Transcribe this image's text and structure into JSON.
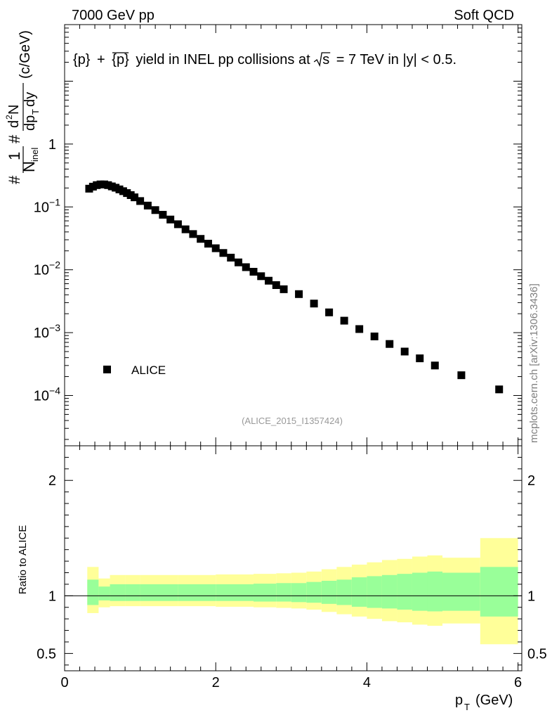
{
  "header": {
    "left": "7000 GeV pp",
    "right": "Soft QCD"
  },
  "side_label": "mcplots.cern.ch [arXiv:1306.3436]",
  "chart_data": {
    "type": "scatter",
    "title": "{p} + {p̄} yield in INEL pp collisions at √s = 7 TeV in |y| < 0.5.",
    "title_parts": {
      "p": "{p}",
      "plus": "+",
      "pbar_open": "{",
      "pbar_letter": "p",
      "pbar_close": "}",
      "rest1": "yield in INEL pp collisions at",
      "s": "s",
      "rest2": "=  7 TeV in |y| < 0.5."
    },
    "ylabel_parts": {
      "num": "1",
      "den": "N",
      "den_sub": "inel",
      "frac2_num": "d",
      "frac2_num_sup": "2",
      "frac2_num_tail": "N",
      "frac2_den": "dp",
      "frac2_den_sub": "T",
      "frac2_den_tail": "dy",
      "units": "(c/GeV)",
      "hash": "#"
    },
    "xlabel": "p",
    "xlabel_sub": "T",
    "xlabel_units": "(GeV)",
    "analysis_id": "(ALICE_2015_I1357424)",
    "legend": {
      "label": "ALICE",
      "placement": "bottom-left"
    },
    "xlim": [
      0,
      6.05
    ],
    "ylim_log": [
      -4.8,
      1.9
    ],
    "y_tick_labels": [
      {
        "value": 1,
        "base": "1",
        "exp": ""
      },
      {
        "value": 0.1,
        "base": "10",
        "exp": "−1"
      },
      {
        "value": 0.01,
        "base": "10",
        "exp": "−2"
      },
      {
        "value": 0.001,
        "base": "10",
        "exp": "−3"
      },
      {
        "value": 0.0001,
        "base": "10",
        "exp": "−4"
      }
    ],
    "x_tick_labels": [
      "0",
      "2",
      "4",
      "6"
    ],
    "series": [
      {
        "name": "ALICE",
        "x": [
          0.325,
          0.375,
          0.425,
          0.475,
          0.525,
          0.575,
          0.625,
          0.675,
          0.725,
          0.775,
          0.825,
          0.875,
          0.925,
          1.0,
          1.1,
          1.2,
          1.3,
          1.4,
          1.5,
          1.6,
          1.7,
          1.8,
          1.9,
          2.0,
          2.1,
          2.2,
          2.3,
          2.4,
          2.5,
          2.6,
          2.7,
          2.8,
          2.9,
          3.1,
          3.3,
          3.5,
          3.7,
          3.9,
          4.1,
          4.3,
          4.5,
          4.7,
          4.9,
          5.25,
          5.75
        ],
        "y": [
          0.195,
          0.21,
          0.222,
          0.228,
          0.228,
          0.222,
          0.212,
          0.202,
          0.19,
          0.178,
          0.166,
          0.154,
          0.142,
          0.124,
          0.105,
          0.089,
          0.075,
          0.063,
          0.053,
          0.044,
          0.037,
          0.031,
          0.026,
          0.022,
          0.0185,
          0.0156,
          0.0131,
          0.011,
          0.0093,
          0.0079,
          0.0067,
          0.0057,
          0.0049,
          0.0041,
          0.0029,
          0.0021,
          0.00155,
          0.00114,
          0.00087,
          0.00066,
          0.0005,
          0.00039,
          0.0003,
          0.00021,
          0.000125
        ]
      }
    ],
    "ratio": {
      "ylabel": "Ratio to ALICE",
      "ylim": [
        0.35,
        2.3
      ],
      "tick_labels": [
        "0.5",
        "1",
        "2"
      ],
      "bands": [
        {
          "x0": 0.3,
          "x1": 0.45,
          "y_lo": 0.85,
          "y_hi": 1.25,
          "g_lo": 0.92,
          "g_hi": 1.14
        },
        {
          "x0": 0.45,
          "x1": 0.6,
          "y_lo": 0.9,
          "y_hi": 1.15,
          "g_lo": 0.96,
          "g_hi": 1.08
        },
        {
          "x0": 0.6,
          "x1": 0.8,
          "y_lo": 0.91,
          "y_hi": 1.18,
          "g_lo": 0.955,
          "g_hi": 1.1
        },
        {
          "x0": 0.8,
          "x1": 1.0,
          "y_lo": 0.91,
          "y_hi": 1.18,
          "g_lo": 0.955,
          "g_hi": 1.1
        },
        {
          "x0": 1.0,
          "x1": 1.5,
          "y_lo": 0.91,
          "y_hi": 1.18,
          "g_lo": 0.955,
          "g_hi": 1.1
        },
        {
          "x0": 1.5,
          "x1": 2.0,
          "y_lo": 0.91,
          "y_hi": 1.18,
          "g_lo": 0.955,
          "g_hi": 1.1
        },
        {
          "x0": 2.0,
          "x1": 2.5,
          "y_lo": 0.905,
          "y_hi": 1.185,
          "g_lo": 0.955,
          "g_hi": 1.1
        },
        {
          "x0": 2.5,
          "x1": 2.8,
          "y_lo": 0.9,
          "y_hi": 1.19,
          "g_lo": 0.95,
          "g_hi": 1.105
        },
        {
          "x0": 2.8,
          "x1": 3.0,
          "y_lo": 0.895,
          "y_hi": 1.195,
          "g_lo": 0.95,
          "g_hi": 1.11
        },
        {
          "x0": 3.0,
          "x1": 3.2,
          "y_lo": 0.89,
          "y_hi": 1.2,
          "g_lo": 0.945,
          "g_hi": 1.11
        },
        {
          "x0": 3.2,
          "x1": 3.4,
          "y_lo": 0.88,
          "y_hi": 1.21,
          "g_lo": 0.94,
          "g_hi": 1.12
        },
        {
          "x0": 3.4,
          "x1": 3.6,
          "y_lo": 0.86,
          "y_hi": 1.23,
          "g_lo": 0.93,
          "g_hi": 1.13
        },
        {
          "x0": 3.6,
          "x1": 3.8,
          "y_lo": 0.84,
          "y_hi": 1.25,
          "g_lo": 0.92,
          "g_hi": 1.14
        },
        {
          "x0": 3.8,
          "x1": 4.0,
          "y_lo": 0.82,
          "y_hi": 1.27,
          "g_lo": 0.905,
          "g_hi": 1.16
        },
        {
          "x0": 4.0,
          "x1": 4.2,
          "y_lo": 0.8,
          "y_hi": 1.29,
          "g_lo": 0.895,
          "g_hi": 1.17
        },
        {
          "x0": 4.2,
          "x1": 4.4,
          "y_lo": 0.78,
          "y_hi": 1.31,
          "g_lo": 0.89,
          "g_hi": 1.18
        },
        {
          "x0": 4.4,
          "x1": 4.6,
          "y_lo": 0.77,
          "y_hi": 1.32,
          "g_lo": 0.88,
          "g_hi": 1.19
        },
        {
          "x0": 4.6,
          "x1": 4.8,
          "y_lo": 0.75,
          "y_hi": 1.34,
          "g_lo": 0.87,
          "g_hi": 1.2
        },
        {
          "x0": 4.8,
          "x1": 5.0,
          "y_lo": 0.74,
          "y_hi": 1.35,
          "g_lo": 0.865,
          "g_hi": 1.21
        },
        {
          "x0": 5.0,
          "x1": 5.5,
          "y_lo": 0.76,
          "y_hi": 1.33,
          "g_lo": 0.87,
          "g_hi": 1.2
        },
        {
          "x0": 5.5,
          "x1": 6.0,
          "y_lo": 0.58,
          "y_hi": 1.5,
          "g_lo": 0.82,
          "g_hi": 1.25
        }
      ]
    }
  },
  "colors": {
    "band_outer": "#ffff99",
    "band_inner": "#99ff99",
    "marker": "#000000",
    "analysis_id": "#999999",
    "side_label": "#808080"
  }
}
